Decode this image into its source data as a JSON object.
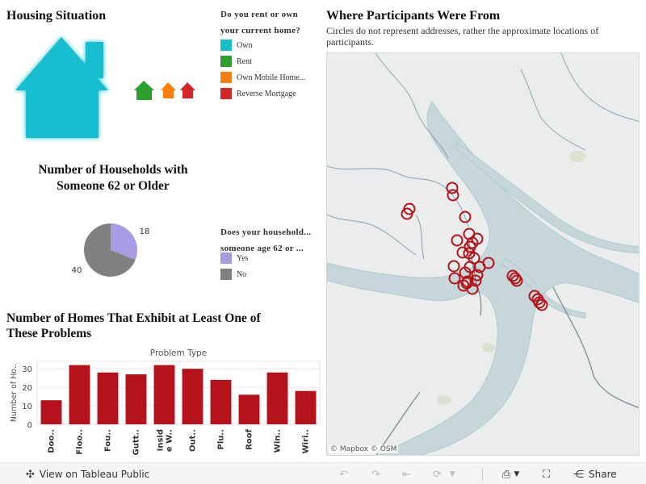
{
  "housing": {
    "title": "Housing Situation",
    "legend_title_line1": "Do you rent or own",
    "legend_title_line2": "your current home?",
    "legend_items": [
      {
        "label": "Own",
        "color": "#17becf"
      },
      {
        "label": "Rent",
        "color": "#2ca02c"
      },
      {
        "label": "Own Mobile Home...",
        "color": "#ff7f0e"
      },
      {
        "label": "Reverse Mortgage",
        "color": "#d62728"
      }
    ]
  },
  "households": {
    "title_line1": "Number of Households with",
    "title_line2": "Someone 62 or Older",
    "legend_title_line1": "Does your household...",
    "legend_title_line2": "someone age 62 or ...",
    "legend_items": [
      {
        "label": "Yes",
        "color": "#a89de4"
      },
      {
        "label": "No",
        "color": "#808080"
      }
    ]
  },
  "problems": {
    "title_line1": "Number of Homes That Exhibit at Least One of",
    "title_line2": "These Problems"
  },
  "map": {
    "title": "Where Participants Were From",
    "subtitle": "Circles do not represent addresses, rather the approximate locations of participants.",
    "attribution": "© Mapbox  © OSM",
    "marker_color": "#b5121b"
  },
  "footer": {
    "view_label": "View on Tableau Public",
    "share_label": "Share"
  },
  "chart_data": [
    {
      "type": "pie",
      "categories": [
        "Yes",
        "No"
      ],
      "values": [
        18,
        40
      ],
      "colors": [
        "#a89de4",
        "#808080"
      ]
    },
    {
      "type": "bar",
      "title": "Problem Type",
      "ylabel": "Number of Ho..",
      "categories": [
        "Doo..",
        "Floo..",
        "Fou..",
        "Gutt..",
        "Inside W..",
        "Out..",
        "Plu..",
        "Roof",
        "Win..",
        "Wiri.."
      ],
      "category_lines": [
        [
          "Doo.."
        ],
        [
          "Floo.."
        ],
        [
          "Fou.."
        ],
        [
          "Gutt.."
        ],
        [
          "Insid",
          "e W.."
        ],
        [
          "Out.."
        ],
        [
          "Plu.."
        ],
        [
          "Roof"
        ],
        [
          "Win.."
        ],
        [
          "Wiri.."
        ]
      ],
      "values": [
        13,
        32,
        28,
        27,
        32,
        30,
        24,
        16,
        28,
        18
      ],
      "ylim": [
        0,
        34
      ],
      "yticks": [
        0,
        10,
        20,
        30
      ],
      "color": "#b5121b",
      "grid": true
    }
  ]
}
